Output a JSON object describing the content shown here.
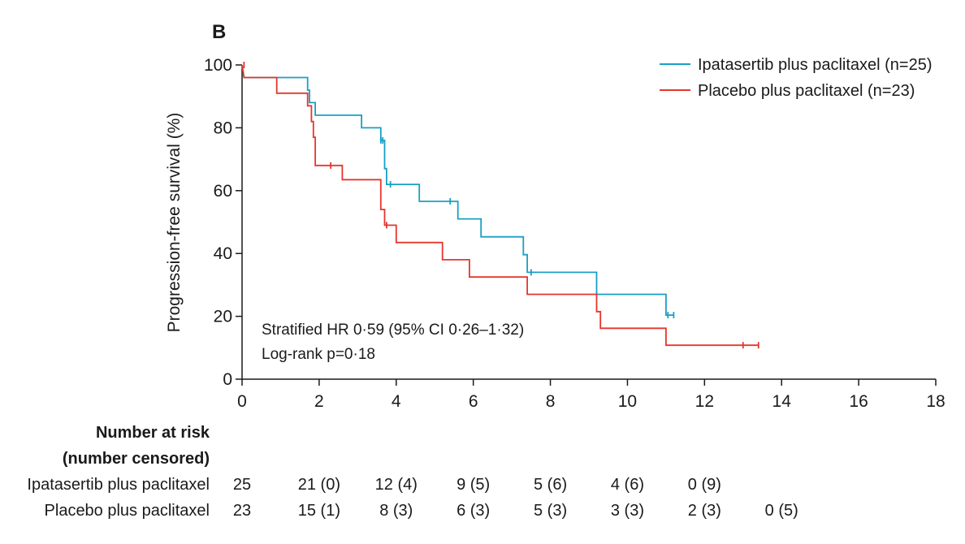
{
  "chart_data": {
    "type": "line",
    "panel_label": "B",
    "title": "",
    "xlabel": "",
    "ylabel": "Progression-free survival (%)",
    "xlim": [
      0,
      18
    ],
    "ylim": [
      0,
      100
    ],
    "x_ticks": [
      0,
      2,
      4,
      6,
      8,
      10,
      12,
      14,
      16,
      18
    ],
    "y_ticks": [
      0,
      20,
      40,
      60,
      80,
      100
    ],
    "grid": false,
    "legend_position": "top-right",
    "series": [
      {
        "name": "Ipatasertib plus paclitaxel (n=25)",
        "color": "#1a9fc4",
        "step_points": [
          [
            0,
            100
          ],
          [
            0.05,
            96
          ],
          [
            1.7,
            96
          ],
          [
            1.7,
            92
          ],
          [
            1.75,
            92
          ],
          [
            1.75,
            88
          ],
          [
            1.9,
            88
          ],
          [
            1.9,
            84
          ],
          [
            3.1,
            84
          ],
          [
            3.1,
            80
          ],
          [
            3.6,
            80
          ],
          [
            3.6,
            76
          ],
          [
            3.7,
            76
          ],
          [
            3.7,
            67
          ],
          [
            3.75,
            67
          ],
          [
            3.75,
            62
          ],
          [
            4.6,
            62
          ],
          [
            4.6,
            56.6
          ],
          [
            5.6,
            56.6
          ],
          [
            5.6,
            51
          ],
          [
            6.2,
            51
          ],
          [
            6.2,
            45.3
          ],
          [
            7.3,
            45.3
          ],
          [
            7.3,
            39.6
          ],
          [
            7.4,
            39.6
          ],
          [
            7.4,
            34
          ],
          [
            9.2,
            34
          ],
          [
            9.2,
            27
          ],
          [
            11.0,
            27
          ],
          [
            11.0,
            20.4
          ],
          [
            11.2,
            20.4
          ]
        ],
        "censor_points": [
          [
            3.6,
            76
          ],
          [
            3.65,
            76
          ],
          [
            3.85,
            62
          ],
          [
            5.4,
            56.6
          ],
          [
            7.5,
            34
          ],
          [
            11.05,
            20.4
          ],
          [
            11.2,
            20.4
          ]
        ]
      },
      {
        "name": "Placebo plus paclitaxel (n=23)",
        "color": "#e6362c",
        "step_points": [
          [
            0,
            100
          ],
          [
            0.05,
            96
          ],
          [
            0.9,
            96
          ],
          [
            0.9,
            91
          ],
          [
            1.7,
            91
          ],
          [
            1.7,
            87
          ],
          [
            1.8,
            87
          ],
          [
            1.8,
            82
          ],
          [
            1.85,
            82
          ],
          [
            1.85,
            77
          ],
          [
            1.9,
            77
          ],
          [
            1.9,
            68
          ],
          [
            2.6,
            68
          ],
          [
            2.6,
            63.5
          ],
          [
            3.6,
            63.5
          ],
          [
            3.6,
            54
          ],
          [
            3.7,
            54
          ],
          [
            3.7,
            49
          ],
          [
            4.0,
            49
          ],
          [
            4.0,
            43.5
          ],
          [
            5.2,
            43.5
          ],
          [
            5.2,
            38
          ],
          [
            5.9,
            38
          ],
          [
            5.9,
            32.5
          ],
          [
            7.4,
            32.5
          ],
          [
            7.4,
            27
          ],
          [
            9.2,
            27
          ],
          [
            9.2,
            21.5
          ],
          [
            9.3,
            21.5
          ],
          [
            9.3,
            16.2
          ],
          [
            11.0,
            16.2
          ],
          [
            11.0,
            10.8
          ],
          [
            13.4,
            10.8
          ]
        ],
        "censor_points": [
          [
            0.05,
            100
          ],
          [
            2.3,
            68
          ],
          [
            3.75,
            49
          ],
          [
            13.0,
            10.8
          ],
          [
            13.4,
            10.8
          ]
        ]
      }
    ],
    "annotations": [
      "Stratified HR 0·59 (95% CI 0·26–1·32)",
      "Log-rank p=0·18"
    ]
  },
  "risk_table": {
    "header_line1": "Number at risk",
    "header_line2": "(number censored)",
    "timepoints": [
      0,
      2,
      4,
      6,
      8,
      10,
      12,
      14
    ],
    "rows": [
      {
        "label": "Ipatasertib plus paclitaxel",
        "values": [
          "25",
          "21 (0)",
          "12 (4)",
          "9 (5)",
          "5 (6)",
          "4 (6)",
          "0 (9)",
          ""
        ]
      },
      {
        "label": "Placebo plus paclitaxel",
        "values": [
          "23",
          "15 (1)",
          "8 (3)",
          "6 (3)",
          "5 (3)",
          "3 (3)",
          "2 (3)",
          "0 (5)"
        ]
      }
    ]
  }
}
